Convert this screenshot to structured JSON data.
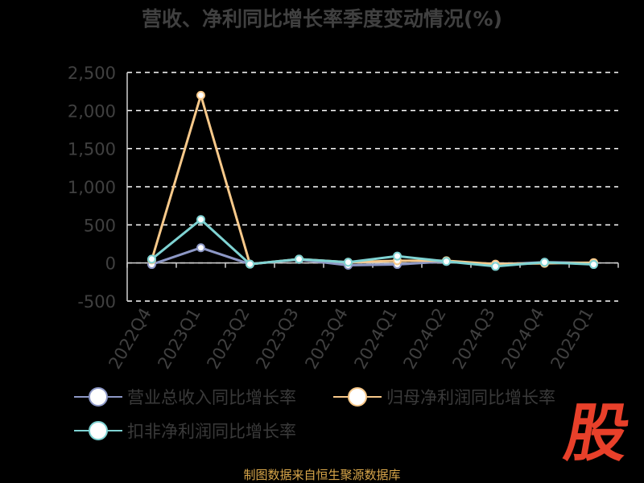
{
  "chart_data": {
    "type": "line",
    "title": "营收、净利同比增长率季度变动情况(%)",
    "categories": [
      "2022Q4",
      "2023Q1",
      "2023Q2",
      "2023Q3",
      "2023Q4",
      "2024Q1",
      "2024Q2",
      "2024Q3",
      "2024Q4",
      "2025Q1"
    ],
    "ylim": [
      -500,
      2500
    ],
    "yticks": [
      "-500",
      "0",
      "500",
      "1,000",
      "1,500",
      "2,000",
      "2,500"
    ],
    "ytick_values": [
      -500,
      0,
      500,
      1000,
      1500,
      2000,
      2500
    ],
    "grid": true,
    "legend_position": "bottom",
    "series": [
      {
        "name": "营业总收入同比增长率",
        "color": "#8d98c6",
        "values": [
          -20,
          200,
          -15,
          45,
          -30,
          -20,
          20,
          -20,
          10,
          0
        ]
      },
      {
        "name": "归母净利润同比增长率",
        "color": "#f8c98a",
        "values": [
          40,
          2200,
          -15,
          50,
          10,
          30,
          30,
          -15,
          -5,
          5
        ]
      },
      {
        "name": "扣非净利润同比增长率",
        "color": "#7fd3d3",
        "values": [
          50,
          570,
          -15,
          50,
          10,
          90,
          20,
          -45,
          10,
          -20
        ]
      }
    ]
  },
  "source": "制图数据来自恒生聚源数据库",
  "logo": "股"
}
